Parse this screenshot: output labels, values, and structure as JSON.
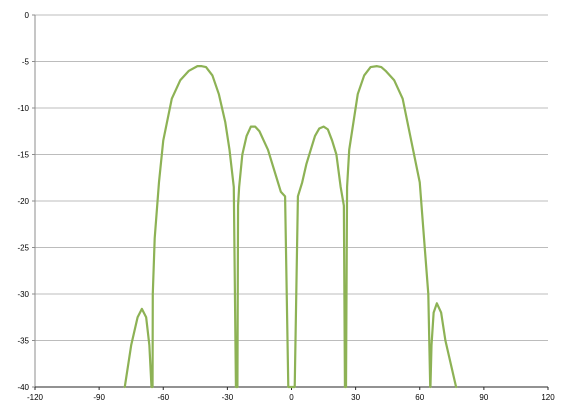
{
  "chart_data": {
    "type": "line",
    "title": "",
    "xlabel": "",
    "ylabel": "",
    "xlim": [
      -120,
      120
    ],
    "ylim": [
      -40,
      0
    ],
    "xticks": [
      -120,
      -90,
      -60,
      -30,
      0,
      30,
      60,
      90,
      120
    ],
    "xtick_labels": [
      "-120",
      "-90",
      "-60",
      "-30",
      "0",
      "30",
      "60",
      "90",
      "120"
    ],
    "yticks": [
      0,
      -5,
      -10,
      -15,
      -20,
      -25,
      -30,
      -35,
      -40
    ],
    "ytick_labels": [
      "0",
      "-5",
      "-10",
      "-15",
      "-20",
      "-25",
      "-30",
      "-35",
      "-40"
    ],
    "grid": "horizontal",
    "legend": "none",
    "series": [
      {
        "color": "#8db255",
        "x": [
          -78,
          -75,
          -72,
          -70,
          -68,
          -66.5,
          -65.5,
          -65,
          -64.9,
          -64,
          -62,
          -60,
          -56,
          -52,
          -48,
          -44,
          -42,
          -40,
          -37,
          -34,
          -31,
          -29,
          -27,
          -26,
          -25.5,
          -25.3,
          -25,
          -24.5,
          -23,
          -21,
          -19,
          -17,
          -15,
          -13,
          -11,
          -9,
          -7,
          -5,
          -3,
          -1.5,
          -0.8,
          -0.4,
          0.4,
          0.8,
          1.5,
          3,
          5,
          7,
          9,
          11,
          13,
          15,
          17,
          19,
          21,
          23,
          24.5,
          25,
          25.3,
          25.5,
          26,
          27,
          29,
          31,
          34,
          37,
          40,
          42,
          44,
          48,
          52,
          56,
          60,
          62,
          64,
          64.9,
          65,
          65.5,
          66.5,
          68,
          70,
          72,
          75,
          77
        ],
        "y": [
          -40,
          -35.5,
          -32.5,
          -31.6,
          -32.5,
          -35.5,
          -40,
          -40,
          -30,
          -24,
          -18,
          -13.5,
          -9,
          -7,
          -6,
          -5.5,
          -5.5,
          -5.6,
          -6.5,
          -8.5,
          -11.5,
          -14.5,
          -18.5,
          -40,
          -40,
          -40,
          -20.5,
          -18.5,
          -15,
          -13,
          -12,
          -12,
          -12.5,
          -13.5,
          -14.5,
          -16,
          -17.5,
          -19,
          -19.5,
          -40,
          -40,
          -40,
          -40,
          -40,
          -40,
          -19.5,
          -18,
          -16,
          -14.5,
          -13,
          -12.2,
          -12,
          -12.3,
          -13.5,
          -15,
          -18.5,
          -20.5,
          -40,
          -40,
          -40,
          -18.5,
          -14.5,
          -11.5,
          -8.5,
          -6.5,
          -5.6,
          -5.5,
          -5.6,
          -6,
          -7,
          -9,
          -13.5,
          -18,
          -24,
          -30,
          -40,
          -40,
          -35.5,
          -32,
          -31,
          -32,
          -35,
          -38,
          -40
        ]
      }
    ]
  }
}
